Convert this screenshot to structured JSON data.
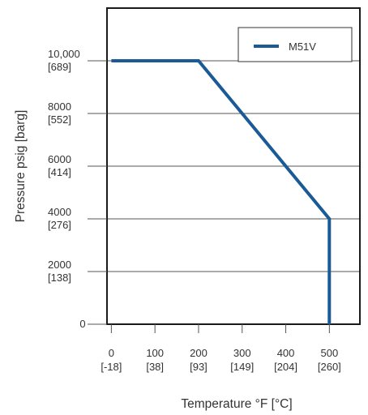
{
  "chart_data": {
    "type": "line",
    "title": "",
    "xlabel": "Temperature °F [°C]",
    "ylabel": "Pressure psig [barg]",
    "xlim": [
      -10,
      570
    ],
    "ylim": [
      0,
      12000
    ],
    "grid": "horizontal",
    "legend_position": "top-right",
    "x_ticks": [
      {
        "value": 0,
        "label": "0",
        "sublabel": "[-18]"
      },
      {
        "value": 100,
        "label": "100",
        "sublabel": "[38]"
      },
      {
        "value": 200,
        "label": "200",
        "sublabel": "[93]"
      },
      {
        "value": 300,
        "label": "300",
        "sublabel": "[149]"
      },
      {
        "value": 400,
        "label": "400",
        "sublabel": "[204]"
      },
      {
        "value": 500,
        "label": "500",
        "sublabel": "[260]"
      }
    ],
    "y_ticks": [
      {
        "value": 0,
        "label": "0",
        "sublabel": ""
      },
      {
        "value": 2000,
        "label": "2000",
        "sublabel": "[138]"
      },
      {
        "value": 4000,
        "label": "4000",
        "sublabel": "[276]"
      },
      {
        "value": 6000,
        "label": "6000",
        "sublabel": "[414]"
      },
      {
        "value": 8000,
        "label": "8000",
        "sublabel": "[552]"
      },
      {
        "value": 10000,
        "label": "10,000",
        "sublabel": "[689]"
      }
    ],
    "series": [
      {
        "name": "M51V",
        "color": "#1a5a96",
        "x": [
          0,
          200,
          500,
          500
        ],
        "y": [
          10000,
          10000,
          4000,
          0
        ]
      }
    ]
  }
}
